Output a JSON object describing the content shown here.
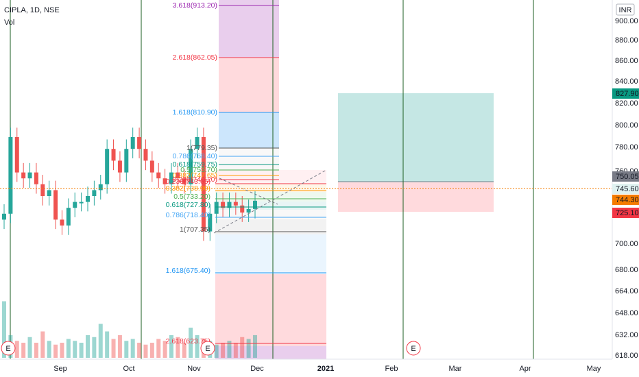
{
  "header": {
    "title": "CIPLA, 1D, NSE",
    "indicator": "Vol"
  },
  "currency": "INR",
  "colors": {
    "up": "#26a69a",
    "down": "#ef5350",
    "vline": "#1b5e20",
    "price_line": "#f57c00"
  },
  "price_axis": {
    "ticks": [
      "900.00",
      "880.00",
      "860.00",
      "840.00",
      "820.00",
      "800.00",
      "780.00",
      "760.00",
      "700.00",
      "680.00",
      "664.00",
      "648.00",
      "632.00",
      "618.00"
    ]
  },
  "price_badges": [
    {
      "label": "827.90",
      "bg": "#089981",
      "fg": "#ffffff"
    },
    {
      "label": "750.05",
      "bg": "#787b86",
      "fg": "#ffffff"
    },
    {
      "label": "745.60",
      "bg": "#e0f2f1",
      "fg": "#131722"
    },
    {
      "label": "744.30",
      "bg": "#f57c00",
      "fg": "#131722"
    },
    {
      "label": "725.10",
      "bg": "#f23645",
      "fg": "#ffffff"
    }
  ],
  "time_axis": [
    "Sep",
    "Oct",
    "Nov",
    "Dec",
    "2021",
    "Feb",
    "Mar",
    "Apr",
    "May"
  ],
  "events": [
    "E",
    "E",
    "E"
  ],
  "fib_upper": [
    {
      "label": "3.618(913.20)",
      "color": "#9c27b0"
    },
    {
      "label": "2.618(862.05)",
      "color": "#f23645"
    },
    {
      "label": "1.618(810.90)",
      "color": "#2196f3"
    },
    {
      "label": "1(779.35)",
      "color": "#555555"
    },
    {
      "label": "0.786(768.40)",
      "color": "#42a5f5"
    },
    {
      "label": "0.618(759.75)",
      "color": "#089981"
    },
    {
      "label": "0.5(753.70)",
      "color": "#4caf50"
    },
    {
      "label": "0.382(747.65)",
      "color": "#ff9800"
    },
    {
      "label": "0.236(740.20)",
      "color": "#f23645"
    }
  ],
  "fib_lower": [
    {
      "label": "0.236(743.65)",
      "color": "#f23645"
    },
    {
      "label": "0.382(738.90)",
      "color": "#ff9800"
    },
    {
      "label": "0.5(733.20)",
      "color": "#4caf50"
    },
    {
      "label": "0.618(727.80)",
      "color": "#089981"
    },
    {
      "label": "0.786(718.40)",
      "color": "#42a5f5"
    },
    {
      "label": "1(707.35)",
      "color": "#555555"
    },
    {
      "label": "1.618(675.40)",
      "color": "#2196f3"
    },
    {
      "label": "2.618(623.75)",
      "color": "#f23645"
    }
  ],
  "chart_data": {
    "type": "candlestick",
    "series_name": "CIPLA",
    "x": [
      "Aug-11",
      "Aug-13",
      "Aug-17",
      "Aug-19",
      "Aug-21",
      "Aug-25",
      "Aug-27",
      "Aug-31",
      "Sep-02",
      "Sep-04",
      "Sep-08",
      "Sep-10",
      "Sep-14",
      "Sep-16",
      "Sep-18",
      "Sep-22",
      "Sep-24",
      "Sep-28",
      "Sep-30",
      "Oct-02",
      "Oct-06",
      "Oct-08",
      "Oct-12",
      "Oct-14",
      "Oct-16",
      "Oct-20",
      "Oct-22",
      "Oct-26",
      "Oct-28",
      "Nov-02",
      "Nov-04",
      "Nov-06",
      "Nov-10",
      "Nov-12",
      "Nov-17",
      "Nov-19",
      "Nov-23",
      "Nov-25",
      "Nov-27",
      "Dec-01"
    ],
    "close": [
      735,
      800,
      770,
      765,
      770,
      760,
      750,
      755,
      730,
      725,
      740,
      745,
      745,
      750,
      755,
      760,
      790,
      780,
      770,
      790,
      800,
      790,
      780,
      770,
      765,
      760,
      770,
      765,
      760,
      790,
      800,
      720,
      735,
      745,
      740,
      745,
      742,
      736,
      739,
      746
    ],
    "volume": [
      150,
      60,
      45,
      40,
      55,
      40,
      70,
      45,
      35,
      40,
      50,
      45,
      40,
      60,
      55,
      90,
      70,
      50,
      60,
      45,
      50,
      40,
      35,
      40,
      50,
      45,
      60,
      55,
      40,
      80,
      60,
      50,
      45,
      35,
      40,
      45,
      40,
      55,
      50,
      60
    ],
    "ylim": [
      618,
      913
    ]
  }
}
